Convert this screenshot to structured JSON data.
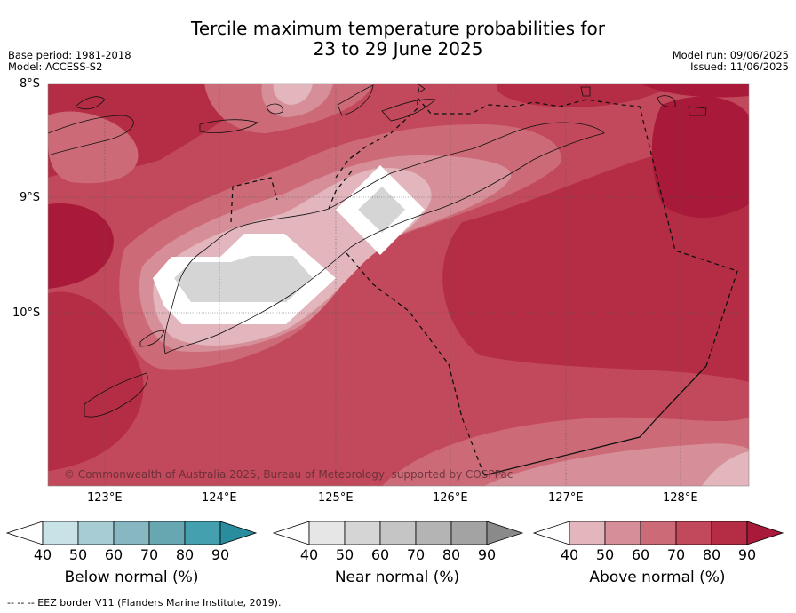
{
  "title": {
    "line1": "Tercile maximum temperature probabilities for",
    "line2": "23 to 29 June 2025"
  },
  "meta": {
    "base_period": "Base period: 1981-2018",
    "model": "Model: ACCESS-S2",
    "model_run": "Model run: 09/06/2025",
    "issued": "Issued: 11/06/2025"
  },
  "map": {
    "lat_labels": [
      "8°S",
      "9°S",
      "10°S"
    ],
    "lon_labels": [
      "123°E",
      "124°E",
      "125°E",
      "126°E",
      "127°E",
      "128°E"
    ],
    "copyright": "© Commonwealth of Australia 2025, Bureau of Meteorology, supported by COSPPac",
    "colors": {
      "above_70_80": "#c2495b",
      "above_80_90": "#b52d45",
      "above_60_70": "#cd6a77",
      "above_50_60": "#d68f98",
      "above_40_50": "#e2b6bc",
      "above_90": "#a8193a",
      "near_50_60": "#d5d5d5"
    }
  },
  "colorbars": [
    {
      "label": "Below normal (%)",
      "ticks": [
        "40",
        "50",
        "60",
        "70",
        "80",
        "90"
      ],
      "colors": [
        "#ffffff",
        "#c9e2e8",
        "#a8ccd3",
        "#87b8c2",
        "#66a7b2",
        "#44a0ae",
        "#2a8d9e"
      ]
    },
    {
      "label": "Near normal (%)",
      "ticks": [
        "40",
        "50",
        "60",
        "70",
        "80",
        "90"
      ],
      "colors": [
        "#ffffff",
        "#e6e6e6",
        "#d5d5d5",
        "#c5c5c5",
        "#b4b4b4",
        "#a3a3a3",
        "#8a8a8a"
      ]
    },
    {
      "label": "Above normal (%)",
      "ticks": [
        "40",
        "50",
        "60",
        "70",
        "80",
        "90"
      ],
      "colors": [
        "#ffffff",
        "#e2b6bc",
        "#d68f98",
        "#cd6a77",
        "#c2495b",
        "#b52d45",
        "#a8193a"
      ]
    }
  ],
  "footer": "--  --  -- EEZ border V11 (Flanders Marine Institute, 2019)."
}
